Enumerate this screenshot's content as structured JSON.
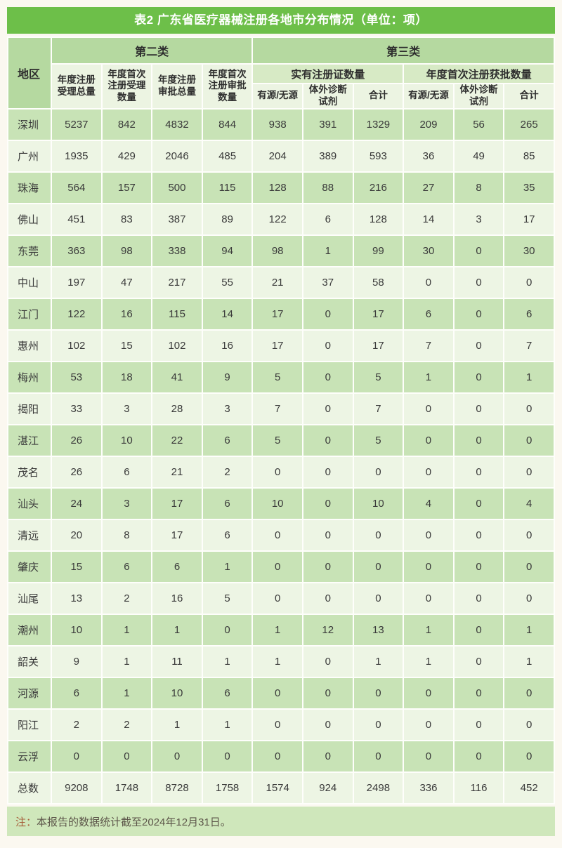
{
  "title": "表2 广东省医疗器械注册各地市分布情况（单位：项）",
  "note": {
    "prefix": "注：",
    "text": "本报告的数据统计截至2024年12月31日。"
  },
  "colors": {
    "title_bar_green": "#6dbf49",
    "header_band_green": "#b5d9a0",
    "subheader_green": "#d7eac5",
    "leaf_header_green": "#ecf4e2",
    "row_dark_green": "#c8e3b6",
    "row_light_green": "#edf5e4",
    "note_band_green": "#cfe7bb",
    "text_dark": "#3a3a3a",
    "note_prefix_color": "#a65e3a"
  },
  "chart_data": {
    "type": "table",
    "title": "表2 广东省医疗器械注册各地市分布情况（单位：项）",
    "header": {
      "region": "地区",
      "class2": {
        "label": "第二类",
        "columns": [
          "年度注册受理总量",
          "年度首次注册受理数量",
          "年度注册审批总量",
          "年度首次注册审批数量"
        ]
      },
      "class3": {
        "label": "第三类",
        "groups": [
          {
            "label": "实有注册证数量",
            "columns": [
              "有源/无源",
              "体外诊断试剂",
              "合计"
            ]
          },
          {
            "label": "年度首次注册获批数量",
            "columns": [
              "有源/无源",
              "体外诊断试剂",
              "合计"
            ]
          }
        ]
      }
    },
    "rows": [
      {
        "region": "深圳",
        "values": [
          5237,
          842,
          4832,
          844,
          938,
          391,
          1329,
          209,
          56,
          265
        ]
      },
      {
        "region": "广州",
        "values": [
          1935,
          429,
          2046,
          485,
          204,
          389,
          593,
          36,
          49,
          85
        ]
      },
      {
        "region": "珠海",
        "values": [
          564,
          157,
          500,
          115,
          128,
          88,
          216,
          27,
          8,
          35
        ]
      },
      {
        "region": "佛山",
        "values": [
          451,
          83,
          387,
          89,
          122,
          6,
          128,
          14,
          3,
          17
        ]
      },
      {
        "region": "东莞",
        "values": [
          363,
          98,
          338,
          94,
          98,
          1,
          99,
          30,
          0,
          30
        ]
      },
      {
        "region": "中山",
        "values": [
          197,
          47,
          217,
          55,
          21,
          37,
          58,
          0,
          0,
          0
        ]
      },
      {
        "region": "江门",
        "values": [
          122,
          16,
          115,
          14,
          17,
          0,
          17,
          6,
          0,
          6
        ]
      },
      {
        "region": "惠州",
        "values": [
          102,
          15,
          102,
          16,
          17,
          0,
          17,
          7,
          0,
          7
        ]
      },
      {
        "region": "梅州",
        "values": [
          53,
          18,
          41,
          9,
          5,
          0,
          5,
          1,
          0,
          1
        ]
      },
      {
        "region": "揭阳",
        "values": [
          33,
          3,
          28,
          3,
          7,
          0,
          7,
          0,
          0,
          0
        ]
      },
      {
        "region": "湛江",
        "values": [
          26,
          10,
          22,
          6,
          5,
          0,
          5,
          0,
          0,
          0
        ]
      },
      {
        "region": "茂名",
        "values": [
          26,
          6,
          21,
          2,
          0,
          0,
          0,
          0,
          0,
          0
        ]
      },
      {
        "region": "汕头",
        "values": [
          24,
          3,
          17,
          6,
          10,
          0,
          10,
          4,
          0,
          4
        ]
      },
      {
        "region": "清远",
        "values": [
          20,
          8,
          17,
          6,
          0,
          0,
          0,
          0,
          0,
          0
        ]
      },
      {
        "region": "肇庆",
        "values": [
          15,
          6,
          6,
          1,
          0,
          0,
          0,
          0,
          0,
          0
        ]
      },
      {
        "region": "汕尾",
        "values": [
          13,
          2,
          16,
          5,
          0,
          0,
          0,
          0,
          0,
          0
        ]
      },
      {
        "region": "潮州",
        "values": [
          10,
          1,
          1,
          0,
          1,
          12,
          13,
          1,
          0,
          1
        ]
      },
      {
        "region": "韶关",
        "values": [
          9,
          1,
          11,
          1,
          1,
          0,
          1,
          1,
          0,
          1
        ]
      },
      {
        "region": "河源",
        "values": [
          6,
          1,
          10,
          6,
          0,
          0,
          0,
          0,
          0,
          0
        ]
      },
      {
        "region": "阳江",
        "values": [
          2,
          2,
          1,
          1,
          0,
          0,
          0,
          0,
          0,
          0
        ]
      },
      {
        "region": "云浮",
        "values": [
          0,
          0,
          0,
          0,
          0,
          0,
          0,
          0,
          0,
          0
        ]
      }
    ],
    "total": {
      "region": "总数",
      "values": [
        9208,
        1748,
        8728,
        1758,
        1574,
        924,
        2498,
        336,
        116,
        452
      ]
    }
  }
}
